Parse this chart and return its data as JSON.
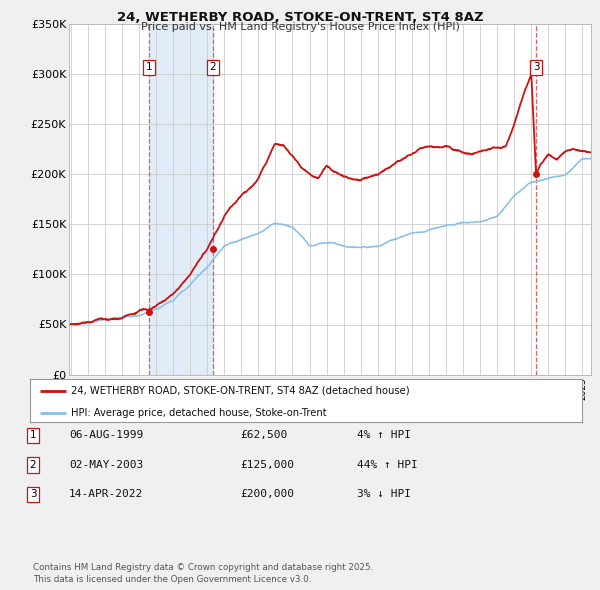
{
  "title": "24, WETHERBY ROAD, STOKE-ON-TRENT, ST4 8AZ",
  "subtitle": "Price paid vs. HM Land Registry's House Price Index (HPI)",
  "x_start_year": 1995,
  "x_end_year": 2025,
  "ylim": [
    0,
    350000
  ],
  "yticks": [
    0,
    50000,
    100000,
    150000,
    200000,
    250000,
    300000,
    350000
  ],
  "ytick_labels": [
    "£0",
    "£50K",
    "£100K",
    "£150K",
    "£200K",
    "£250K",
    "£300K",
    "£350K"
  ],
  "hpi_color": "#87bde8",
  "price_color": "#cc1111",
  "sale_marker_color": "#cc1111",
  "vline_color": "#e06060",
  "vline_style": "--",
  "shade_color": "#dce9f7",
  "transactions": [
    {
      "label": "1",
      "date_str": "06-AUG-1999",
      "price": 62500,
      "pct": "4%",
      "direction": "↑",
      "year": 1999.6
    },
    {
      "label": "2",
      "date_str": "02-MAY-2003",
      "price": 125000,
      "pct": "44%",
      "direction": "↑",
      "year": 2003.33
    },
    {
      "label": "3",
      "date_str": "14-APR-2022",
      "price": 200000,
      "pct": "3%",
      "direction": "↓",
      "year": 2022.28
    }
  ],
  "legend_label_red": "24, WETHERBY ROAD, STOKE-ON-TRENT, ST4 8AZ (detached house)",
  "legend_label_blue": "HPI: Average price, detached house, Stoke-on-Trent",
  "footer": "Contains HM Land Registry data © Crown copyright and database right 2025.\nThis data is licensed under the Open Government Licence v3.0.",
  "background_color": "#f0f0f0",
  "plot_bg_color": "#ffffff",
  "grid_color": "#cccccc",
  "hpi_anchors": {
    "1995": 50000,
    "1996": 52000,
    "1997": 55000,
    "1998": 57000,
    "1999": 59000,
    "2000": 65000,
    "2001": 74000,
    "2002": 90000,
    "2003": 108000,
    "2004": 128000,
    "2005": 135000,
    "2006": 141000,
    "2007": 151000,
    "2008": 147000,
    "2009": 128000,
    "2010": 132000,
    "2011": 128000,
    "2012": 126000,
    "2013": 128000,
    "2014": 135000,
    "2015": 141000,
    "2016": 144000,
    "2017": 148000,
    "2018": 151000,
    "2019": 153000,
    "2020": 157000,
    "2021": 178000,
    "2022": 192000,
    "2023": 196000,
    "2024": 199000,
    "2025": 215000
  },
  "prop_anchors": {
    "1995": 50000,
    "1996": 52000,
    "1997": 55000,
    "1998": 57000,
    "1999": 62500,
    "2000": 68000,
    "2001": 80000,
    "2002": 100000,
    "2003": 125000,
    "2004": 158000,
    "2005": 178000,
    "2006": 195000,
    "2007": 230000,
    "2007.5": 228000,
    "2008": 218000,
    "2008.5": 208000,
    "2009": 200000,
    "2009.5": 195000,
    "2010": 207000,
    "2010.5": 202000,
    "2011": 198000,
    "2011.5": 195000,
    "2012": 194000,
    "2012.5": 196000,
    "2013": 200000,
    "2013.5": 205000,
    "2014": 210000,
    "2015": 220000,
    "2015.5": 225000,
    "2016": 228000,
    "2016.5": 226000,
    "2017": 228000,
    "2017.5": 224000,
    "2018": 222000,
    "2018.5": 220000,
    "2019": 222000,
    "2019.5": 224000,
    "2020": 226000,
    "2020.5": 228000,
    "2021": 250000,
    "2021.5": 278000,
    "2022": 300000,
    "2022.28": 200000,
    "2022.5": 210000,
    "2023": 220000,
    "2023.5": 215000,
    "2024": 222000,
    "2024.5": 225000,
    "2025": 222000
  }
}
